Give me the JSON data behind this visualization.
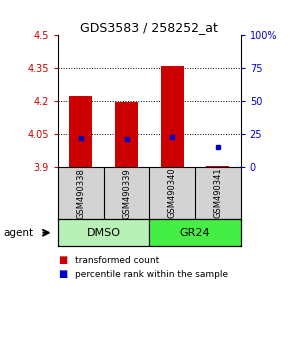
{
  "title": "GDS3583 / 258252_at",
  "samples": [
    "GSM490338",
    "GSM490339",
    "GSM490340",
    "GSM490341"
  ],
  "bar_base": 3.9,
  "bar_tops": [
    4.225,
    4.195,
    4.36,
    3.905
  ],
  "percentile_values": [
    4.03,
    4.025,
    4.035,
    3.99
  ],
  "ylim_left": [
    3.9,
    4.5
  ],
  "ylim_right": [
    0,
    100
  ],
  "yticks_left": [
    3.9,
    4.05,
    4.2,
    4.35,
    4.5
  ],
  "yticks_right": [
    0,
    25,
    50,
    75,
    100
  ],
  "ytick_labels_left": [
    "3.9",
    "4.05",
    "4.2",
    "4.35",
    "4.5"
  ],
  "ytick_labels_right": [
    "0",
    "25",
    "50",
    "75",
    "100%"
  ],
  "bar_color": "#CC0000",
  "percentile_color": "#0000CC",
  "background_color": "#ffffff",
  "left_tick_color": "#CC0000",
  "right_tick_color": "#0000CC",
  "grid_color": "#000000",
  "sample_bg": "#D3D3D3",
  "dmso_color": "#b8f0b8",
  "gr24_color": "#44ee44",
  "group_info": [
    {
      "label": "DMSO",
      "xmin": -0.5,
      "xmax": 1.5,
      "color": "#b8f0b8"
    },
    {
      "label": "GR24",
      "xmin": 1.5,
      "xmax": 3.5,
      "color": "#44ee44"
    }
  ],
  "legend_items": [
    {
      "label": "transformed count",
      "color": "#CC0000"
    },
    {
      "label": "percentile rank within the sample",
      "color": "#0000CC"
    }
  ],
  "agent_label": "agent"
}
